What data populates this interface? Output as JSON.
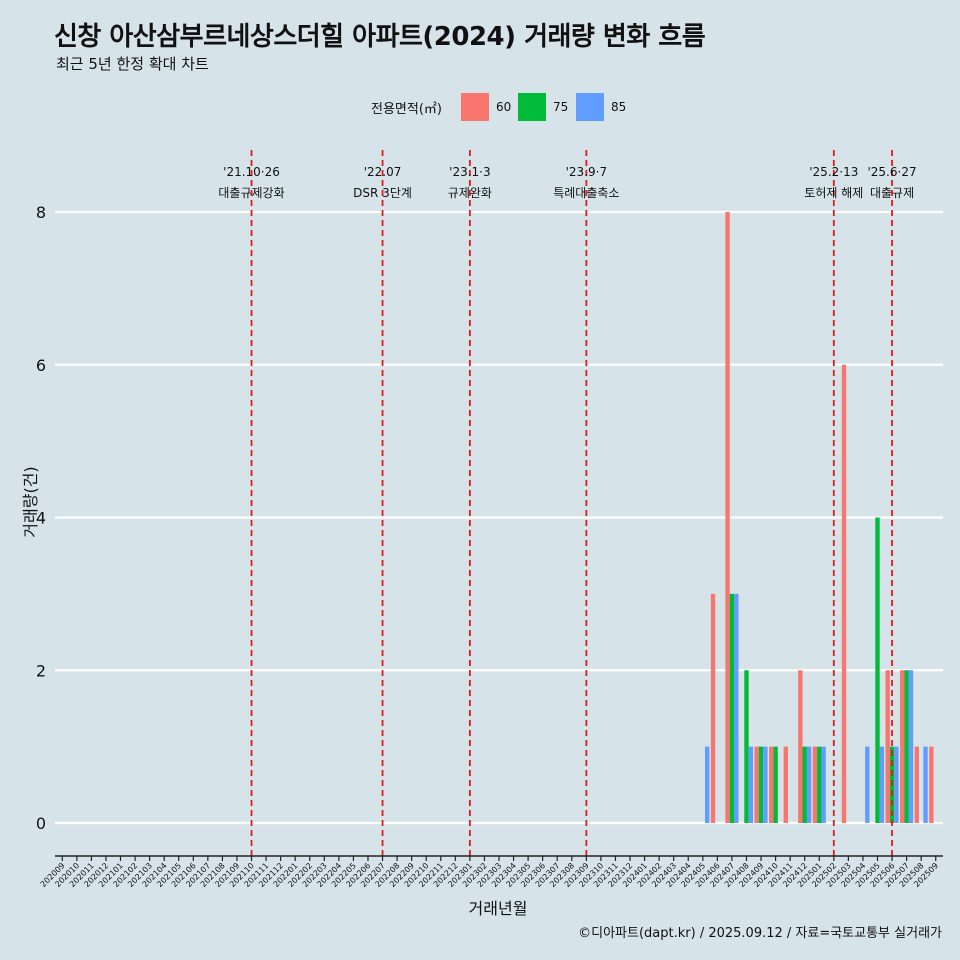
{
  "title": "신창 아산삼부르네상스더힐 아파트(2024) 거래량 변화 흐름",
  "subtitle": "최근 5년 한정 확대 차트",
  "caption": "©디아파트(dapt.kr) / 2025.09.12 / 자료=국토교통부 실거래가",
  "legend": {
    "title": "전용면적(㎡)",
    "items": [
      {
        "label": "60",
        "color": "#f8766d"
      },
      {
        "label": "75",
        "color": "#00ba38"
      },
      {
        "label": "85",
        "color": "#619cff"
      }
    ]
  },
  "chart_data": {
    "type": "bar",
    "xlabel": "거래년월",
    "ylabel": "거래량(건)",
    "ylim": [
      0,
      8
    ],
    "yticks": [
      0,
      2,
      4,
      6,
      8
    ],
    "grid": true,
    "legend_position": "top",
    "categories": [
      "202009",
      "202010",
      "202011",
      "202012",
      "202101",
      "202102",
      "202103",
      "202104",
      "202105",
      "202106",
      "202107",
      "202108",
      "202109",
      "202110",
      "202111",
      "202112",
      "202201",
      "202202",
      "202203",
      "202204",
      "202205",
      "202206",
      "202207",
      "202208",
      "202209",
      "202210",
      "202211",
      "202212",
      "202301",
      "202302",
      "202303",
      "202304",
      "202305",
      "202306",
      "202307",
      "202308",
      "202309",
      "202310",
      "202311",
      "202312",
      "202401",
      "202402",
      "202403",
      "202404",
      "202405",
      "202406",
      "202407",
      "202408",
      "202409",
      "202410",
      "202411",
      "202412",
      "202501",
      "202502",
      "202503",
      "202504",
      "202505",
      "202506",
      "202507",
      "202508",
      "202509"
    ],
    "series": [
      {
        "name": "60",
        "color": "#f8766d",
        "values": [
          0,
          0,
          0,
          0,
          0,
          0,
          0,
          0,
          0,
          0,
          0,
          0,
          0,
          0,
          0,
          0,
          0,
          0,
          0,
          0,
          0,
          0,
          0,
          0,
          0,
          0,
          0,
          0,
          0,
          0,
          0,
          0,
          0,
          0,
          0,
          0,
          0,
          0,
          0,
          0,
          0,
          0,
          0,
          0,
          0,
          3,
          8,
          0,
          1,
          1,
          1,
          2,
          1,
          0,
          6,
          0,
          0,
          2,
          2,
          1,
          1
        ]
      },
      {
        "name": "75",
        "color": "#00ba38",
        "values": [
          0,
          0,
          0,
          0,
          0,
          0,
          0,
          0,
          0,
          0,
          0,
          0,
          0,
          0,
          0,
          0,
          0,
          0,
          0,
          0,
          0,
          0,
          0,
          0,
          0,
          0,
          0,
          0,
          0,
          0,
          0,
          0,
          0,
          0,
          0,
          0,
          0,
          0,
          0,
          0,
          0,
          0,
          0,
          0,
          0,
          0,
          3,
          2,
          1,
          1,
          0,
          1,
          1,
          0,
          0,
          0,
          4,
          1,
          2,
          0,
          0
        ]
      },
      {
        "name": "85",
        "color": "#619cff",
        "values": [
          0,
          0,
          0,
          0,
          0,
          0,
          0,
          0,
          0,
          0,
          0,
          0,
          0,
          0,
          0,
          0,
          0,
          0,
          0,
          0,
          0,
          0,
          0,
          0,
          0,
          0,
          0,
          0,
          0,
          0,
          0,
          0,
          0,
          0,
          0,
          0,
          0,
          0,
          0,
          0,
          0,
          0,
          0,
          0,
          1,
          0,
          3,
          1,
          1,
          0,
          0,
          1,
          1,
          0,
          0,
          1,
          1,
          1,
          2,
          1,
          0
        ]
      }
    ],
    "annotations": [
      {
        "category": "202110",
        "line1": "'21.10·26",
        "line2": "대출규제강화"
      },
      {
        "category": "202207",
        "line1": "'22.07",
        "line2": "DSR 3단계"
      },
      {
        "category": "202301",
        "line1": "'23.1·3",
        "line2": "규제완화"
      },
      {
        "category": "202309",
        "line1": "'23.9·7",
        "line2": "특례대출축소"
      },
      {
        "category": "202502",
        "line1": "'25.2·13",
        "line2": "토허제 해제"
      },
      {
        "category": "202506",
        "line1": "'25.6·27",
        "line2": "대출규제"
      }
    ],
    "annotation_color": "#e31a1c"
  }
}
